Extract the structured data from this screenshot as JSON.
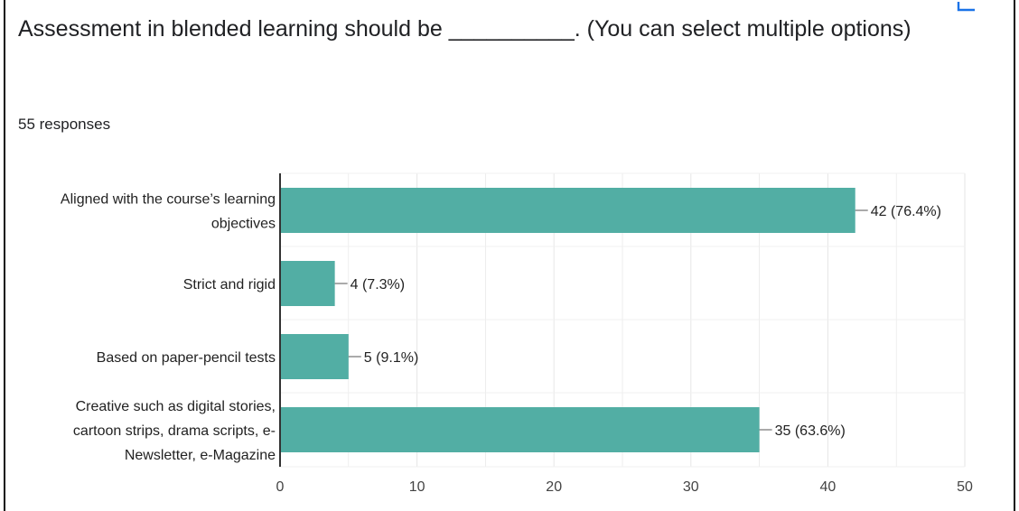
{
  "question": {
    "title": "Assessment in blended learning should be __________. (You can select multiple options)",
    "responses": "55 responses"
  },
  "colors": {
    "bar": "#52aea4",
    "grid": "#e6e6e6",
    "axis": "#333333",
    "accent_icon": "#1a73e8"
  },
  "corner_icon": "copy-chart-icon",
  "chart_data": {
    "type": "bar",
    "orientation": "horizontal",
    "categories": [
      [
        "Aligned with the course’s learning",
        "objectives"
      ],
      [
        "Strict and rigid"
      ],
      [
        "Based on paper-pencil tests"
      ],
      [
        "Creative such as digital stories,",
        "cartoon strips, drama scripts, e-",
        "Newsletter, e-Magazine"
      ]
    ],
    "values": [
      42,
      4,
      5,
      35
    ],
    "value_labels": [
      "42 (76.4%)",
      "4 (7.3%)",
      "5 (9.1%)",
      "35 (63.6%)"
    ],
    "xlim": [
      0,
      50
    ],
    "xticks": [
      0,
      10,
      20,
      30,
      40,
      50
    ],
    "grid": true
  }
}
